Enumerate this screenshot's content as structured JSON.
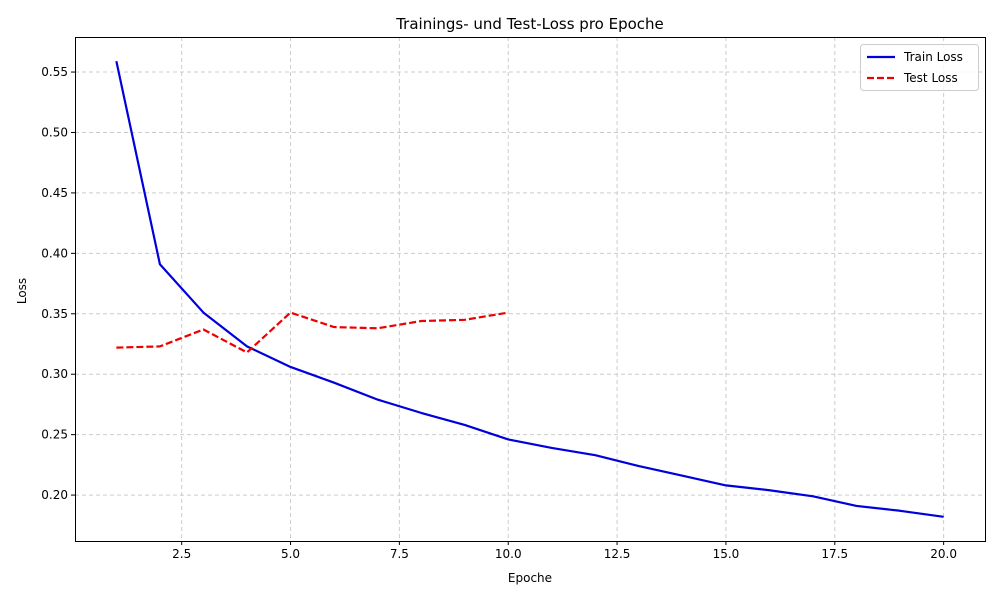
{
  "chart_data": {
    "type": "line",
    "title": "Trainings- und Test-Loss pro Epoche",
    "xlabel": "Epoche",
    "ylabel": "Loss",
    "xlim": [
      0.05,
      20.95
    ],
    "ylim": [
      0.162,
      0.579
    ],
    "xticks": [
      2.5,
      5.0,
      7.5,
      10.0,
      12.5,
      15.0,
      17.5,
      20.0
    ],
    "xtick_labels": [
      "2.5",
      "5.0",
      "7.5",
      "10.0",
      "12.5",
      "15.0",
      "17.5",
      "20.0"
    ],
    "yticks": [
      0.2,
      0.25,
      0.3,
      0.35,
      0.4,
      0.45,
      0.5,
      0.55
    ],
    "ytick_labels": [
      "0.20",
      "0.25",
      "0.30",
      "0.35",
      "0.40",
      "0.45",
      "0.50",
      "0.55"
    ],
    "grid": true,
    "legend_position": "top-right",
    "series": [
      {
        "name": "Train Loss",
        "color": "#0000dd",
        "style": "solid",
        "x": [
          1,
          2,
          3,
          4,
          5,
          6,
          7,
          8,
          9,
          10,
          11,
          12,
          13,
          14,
          15,
          16,
          17,
          18,
          19,
          20
        ],
        "y": [
          0.559,
          0.391,
          0.351,
          0.323,
          0.306,
          0.293,
          0.279,
          0.268,
          0.258,
          0.246,
          0.239,
          0.233,
          0.224,
          0.216,
          0.208,
          0.204,
          0.199,
          0.191,
          0.187,
          0.182
        ]
      },
      {
        "name": "Test Loss",
        "color": "#ee0000",
        "style": "dashed",
        "x": [
          1,
          2,
          3,
          4,
          5,
          6,
          7,
          8,
          9,
          10
        ],
        "y": [
          0.322,
          0.323,
          0.337,
          0.318,
          0.351,
          0.339,
          0.338,
          0.344,
          0.345,
          0.351
        ]
      }
    ]
  }
}
